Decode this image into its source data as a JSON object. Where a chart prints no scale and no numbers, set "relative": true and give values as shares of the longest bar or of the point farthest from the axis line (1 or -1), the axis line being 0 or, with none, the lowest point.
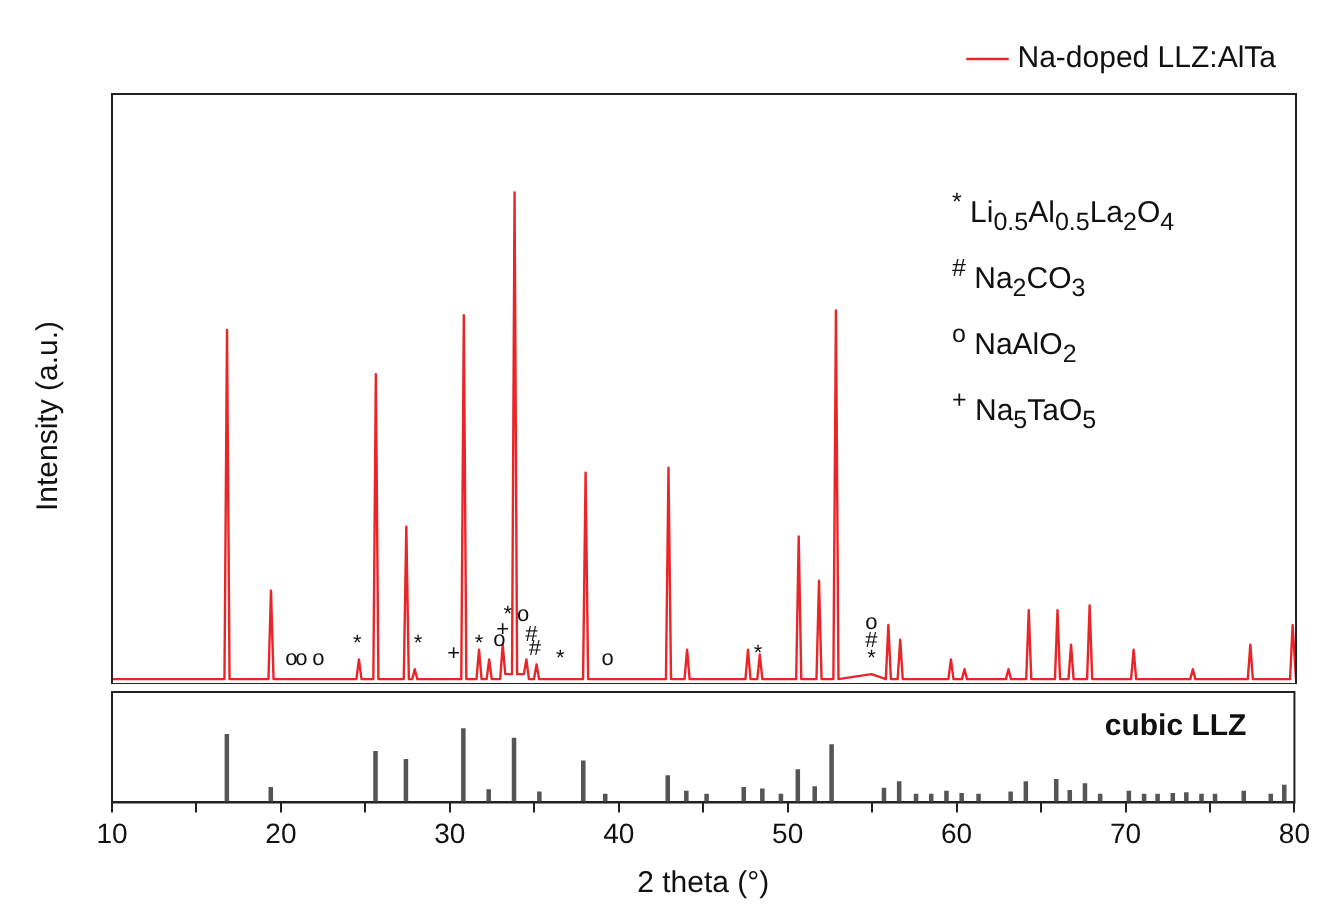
{
  "chart_data": [
    {
      "type": "line",
      "ylabel": "Intensity (a.u.)",
      "relative": true,
      "xlim": [
        10,
        80
      ],
      "tick_labels": false,
      "grid": false,
      "legend": "top right",
      "marker": "none",
      "series": [
        {
          "name": "Na-doped LLZ:AlTa",
          "color": "#e8262a",
          "x": [
            10,
            16.65,
            16.8,
            16.95,
            19.25,
            19.4,
            19.55,
            24.45,
            24.6,
            24.75,
            25.45,
            25.6,
            25.75,
            27.25,
            27.4,
            27.55,
            27.75,
            27.9,
            28.05,
            30.65,
            30.8,
            30.95,
            31.55,
            31.7,
            31.85,
            32.15,
            32.3,
            32.45,
            32.95,
            33.1,
            33.25,
            33.65,
            33.8,
            33.95,
            34.35,
            34.5,
            34.65,
            34.95,
            35.1,
            35.25,
            37.85,
            38.0,
            38.15,
            42.75,
            42.9,
            43.05,
            43.85,
            44.0,
            44.15,
            47.45,
            47.6,
            47.75,
            48.15,
            48.3,
            48.45,
            50.45,
            50.6,
            50.75,
            51.65,
            51.8,
            51.95,
            52.65,
            52.8,
            52.95,
            54.9,
            55.75,
            55.9,
            56.05,
            56.45,
            56.6,
            56.75,
            59.45,
            59.6,
            59.75,
            60.25,
            60.4,
            60.55,
            62.85,
            63.0,
            63.15,
            64.05,
            64.2,
            64.35,
            65.75,
            65.9,
            66.05,
            66.55,
            66.7,
            66.85,
            67.65,
            67.8,
            67.95,
            70.25,
            70.4,
            70.55,
            73.75,
            73.9,
            74.05,
            77.15,
            77.3,
            77.45,
            79.65,
            79.8,
            80
          ],
          "values": [
            0.01,
            0.01,
            0.72,
            0.01,
            0.01,
            0.19,
            0.01,
            0.01,
            0.05,
            0.01,
            0.01,
            0.63,
            0.01,
            0.01,
            0.32,
            0.01,
            0.01,
            0.03,
            0.01,
            0.01,
            0.75,
            0.01,
            0.01,
            0.07,
            0.01,
            0.01,
            0.05,
            0.01,
            0.01,
            0.08,
            0.02,
            0.02,
            1.0,
            0.02,
            0.02,
            0.05,
            0.01,
            0.01,
            0.04,
            0.01,
            0.01,
            0.43,
            0.01,
            0.01,
            0.44,
            0.01,
            0.01,
            0.07,
            0.01,
            0.01,
            0.07,
            0.01,
            0.01,
            0.06,
            0.01,
            0.01,
            0.3,
            0.01,
            0.01,
            0.21,
            0.01,
            0.01,
            0.76,
            0.01,
            0.02,
            0.01,
            0.12,
            0.01,
            0.01,
            0.09,
            0.01,
            0.01,
            0.05,
            0.01,
            0.01,
            0.03,
            0.01,
            0.01,
            0.03,
            0.01,
            0.01,
            0.15,
            0.01,
            0.01,
            0.15,
            0.01,
            0.01,
            0.08,
            0.01,
            0.01,
            0.16,
            0.01,
            0.01,
            0.07,
            0.01,
            0.01,
            0.03,
            0.01,
            0.01,
            0.08,
            0.01,
            0.01,
            0.12,
            0.01
          ]
        }
      ],
      "annotations": [
        "$^{*}$ Li$_{0.5}$Al$_{0.5}$La$_{2}$O$_{4}$",
        "$^{#}$ Na$_{2}$CO$_{3}$",
        "$^{o}$ NaAlO$_{2}$",
        "$^{+}$ Na$_{5}$TaO$_{5}$",
        {
          "text": "o",
          "x": 20.6,
          "y": 0.02
        },
        {
          "text": "o",
          "x": 21.2,
          "y": 0.02
        },
        {
          "text": "o",
          "x": 22.2,
          "y": 0.02
        },
        {
          "text": "*",
          "x": 24.5,
          "y": 0.05
        },
        {
          "text": "*",
          "x": 28.1,
          "y": 0.05
        },
        {
          "text": "+",
          "x": 30.2,
          "y": 0.03
        },
        {
          "text": "*",
          "x": 31.7,
          "y": 0.05
        },
        {
          "text": "o",
          "x": 32.9,
          "y": 0.06
        },
        {
          "text": "+",
          "x": 33.1,
          "y": 0.08
        },
        {
          "text": "*",
          "x": 33.4,
          "y": 0.11
        },
        {
          "text": "o",
          "x": 34.3,
          "y": 0.11
        },
        {
          "text": "#",
          "x": 34.8,
          "y": 0.07
        },
        {
          "text": "#",
          "x": 35.0,
          "y": 0.04
        },
        {
          "text": "*",
          "x": 36.5,
          "y": 0.02
        },
        {
          "text": "o",
          "x": 39.3,
          "y": 0.02
        },
        {
          "text": "*",
          "x": 48.2,
          "y": 0.03
        },
        {
          "text": "*",
          "x": 54.9,
          "y": 0.02
        },
        {
          "text": "#",
          "x": 54.9,
          "y": 0.02
        },
        {
          "text": "o",
          "x": 54.9,
          "y": 0.02
        }
      ]
    },
    {
      "type": "bar",
      "xlabel": "2 theta (°)",
      "relative": true,
      "xlim": [
        10,
        80
      ],
      "tick_labels": "x",
      "grid": false,
      "xticks": [
        10,
        {
          "value": 15,
          "label": null
        },
        20,
        {
          "value": 25,
          "label": null
        },
        30,
        {
          "value": 35,
          "label": null
        },
        40,
        {
          "value": 45,
          "label": null
        },
        50,
        {
          "value": 55,
          "label": null
        },
        60,
        {
          "value": 65,
          "label": null
        },
        70,
        {
          "value": 75,
          "label": null
        },
        80
      ],
      "series": [
        {
          "name": "cubic LLZ",
          "color": "#555555",
          "x": [
            16.8,
            19.4,
            25.6,
            27.4,
            30.8,
            32.3,
            33.8,
            35.3,
            37.9,
            39.2,
            42.9,
            44.0,
            45.2,
            47.4,
            48.5,
            49.6,
            50.6,
            51.6,
            52.6,
            55.7,
            56.6,
            57.6,
            58.5,
            59.4,
            60.3,
            61.3,
            63.2,
            64.1,
            65.9,
            66.7,
            67.6,
            68.5,
            70.2,
            71.1,
            71.9,
            72.8,
            73.6,
            74.5,
            75.3,
            77.0,
            78.6,
            79.4
          ],
          "values": [
            0.92,
            0.2,
            0.69,
            0.58,
            1.0,
            0.17,
            0.87,
            0.14,
            0.56,
            0.11,
            0.36,
            0.15,
            0.11,
            0.2,
            0.18,
            0.11,
            0.44,
            0.21,
            0.78,
            0.19,
            0.28,
            0.11,
            0.11,
            0.15,
            0.12,
            0.11,
            0.14,
            0.28,
            0.31,
            0.16,
            0.25,
            0.11,
            0.15,
            0.11,
            0.11,
            0.12,
            0.13,
            0.11,
            0.11,
            0.15,
            0.11,
            0.23
          ]
        }
      ]
    }
  ]
}
